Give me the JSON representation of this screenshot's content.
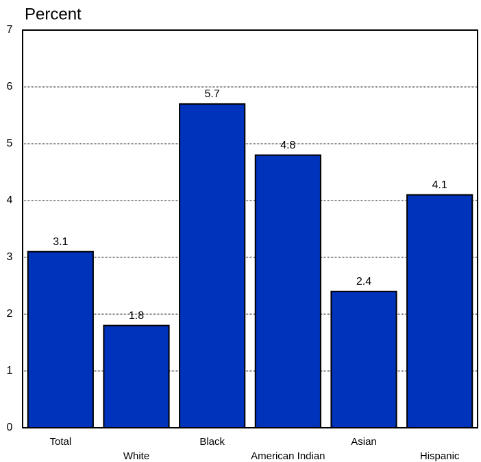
{
  "chart_data": {
    "type": "bar",
    "y_label": "Percent",
    "categories": [
      "Total",
      "White",
      "Black",
      "American Indian",
      "Asian",
      "Hispanic"
    ],
    "values": [
      3.1,
      1.8,
      5.7,
      4.8,
      2.4,
      4.1
    ],
    "color": "#0033bb",
    "ylim": [
      0,
      7
    ],
    "yticks": [
      0,
      1,
      2,
      3,
      4,
      5,
      6,
      7
    ],
    "grid": true
  }
}
